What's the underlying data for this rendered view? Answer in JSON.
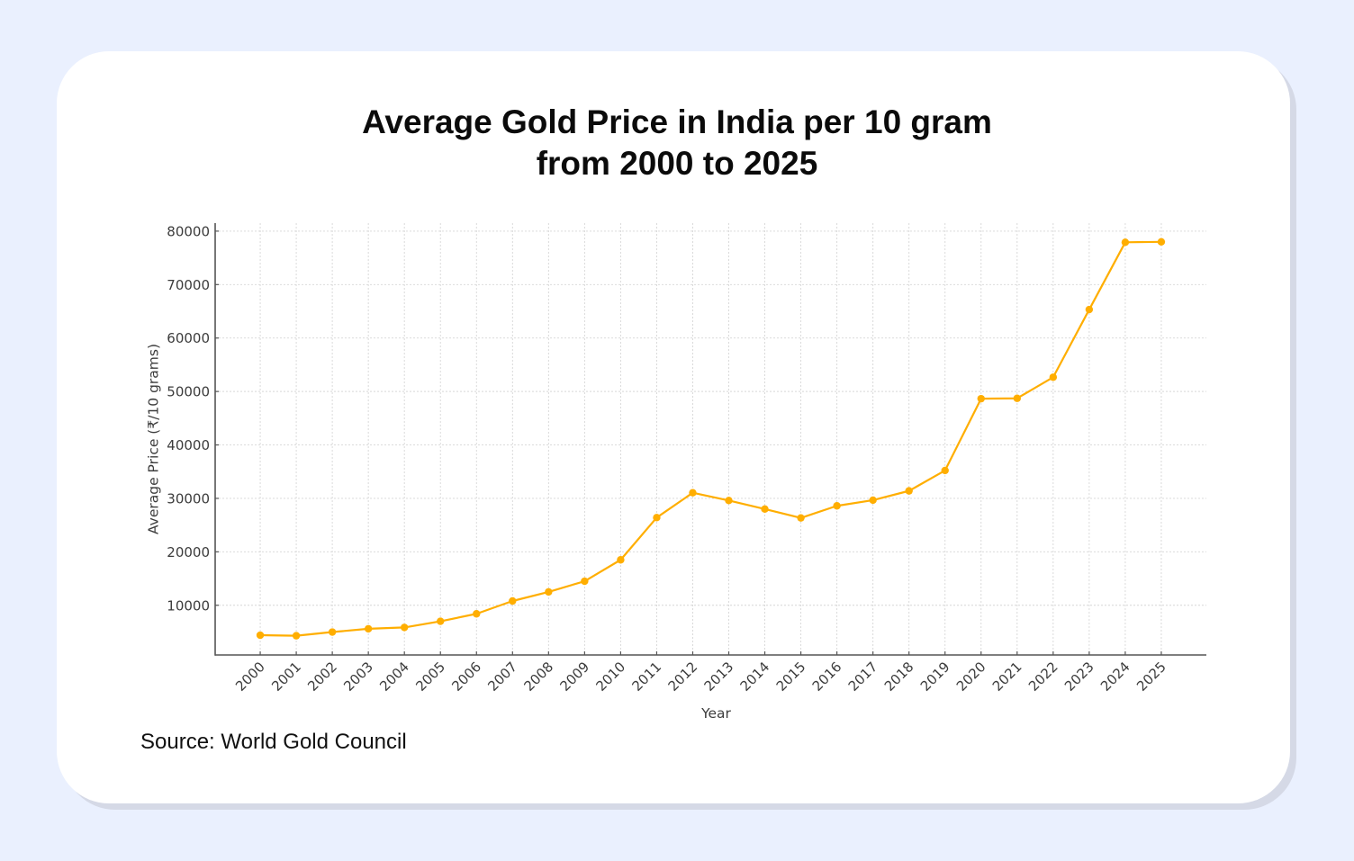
{
  "page": {
    "background_color": "#eaf0fe",
    "card_color": "#ffffff"
  },
  "title_lines": [
    "Average Gold Price in India per 10 gram",
    "from 2000 to 2025"
  ],
  "source": "Source: World Gold Council",
  "chart_data": {
    "type": "line",
    "title": "Average Gold Price in India per 10 gram from 2000 to 2025",
    "xlabel": "Year",
    "ylabel": "Average Price (₹/10 grams)",
    "x": [
      2000,
      2001,
      2002,
      2003,
      2004,
      2005,
      2006,
      2007,
      2008,
      2009,
      2010,
      2011,
      2012,
      2013,
      2014,
      2015,
      2016,
      2017,
      2018,
      2019,
      2020,
      2021,
      2022,
      2023,
      2024,
      2025
    ],
    "categories": [
      "2000",
      "2001",
      "2002",
      "2003",
      "2004",
      "2005",
      "2006",
      "2007",
      "2008",
      "2009",
      "2010",
      "2011",
      "2012",
      "2013",
      "2014",
      "2015",
      "2016",
      "2017",
      "2018",
      "2019",
      "2020",
      "2021",
      "2022",
      "2023",
      "2024",
      "2025"
    ],
    "series": [
      {
        "name": "Average Price",
        "color": "#ffae00",
        "marker": "circle",
        "values": [
          4400,
          4300,
          4990,
          5600,
          5850,
          7000,
          8400,
          10800,
          12500,
          14500,
          18500,
          26400,
          31050,
          29600,
          28000,
          26343,
          28600,
          29667,
          31400,
          35220,
          48651,
          48720,
          52670,
          65330,
          77913,
          78000
        ]
      }
    ],
    "xlim": [
      1998.75,
      2026.25
    ],
    "ylim": [
      700,
      81500
    ],
    "yticks": [
      10000,
      20000,
      30000,
      40000,
      50000,
      60000,
      70000,
      80000
    ],
    "ytick_labels": [
      "10000",
      "20000",
      "30000",
      "40000",
      "50000",
      "60000",
      "70000",
      "80000"
    ],
    "xtick_rotation": 45,
    "grid": true,
    "grid_style": "dotted",
    "legend": "none"
  }
}
